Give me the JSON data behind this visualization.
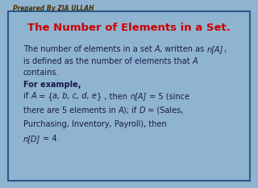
{
  "bg_color": "#8fb4d0",
  "inner_bg": "#8fb4d0",
  "border_color": "#2a5a8a",
  "title_color": "#cc0000",
  "header_color": "#4a3000",
  "text_color": "#1a1a4a",
  "header_text": "Prepared By ZIA ULLAH",
  "title_text": "The Number of Elements in a Set.",
  "font_size_header": 5.5,
  "font_size_title": 9.5,
  "font_size_body": 7.0
}
